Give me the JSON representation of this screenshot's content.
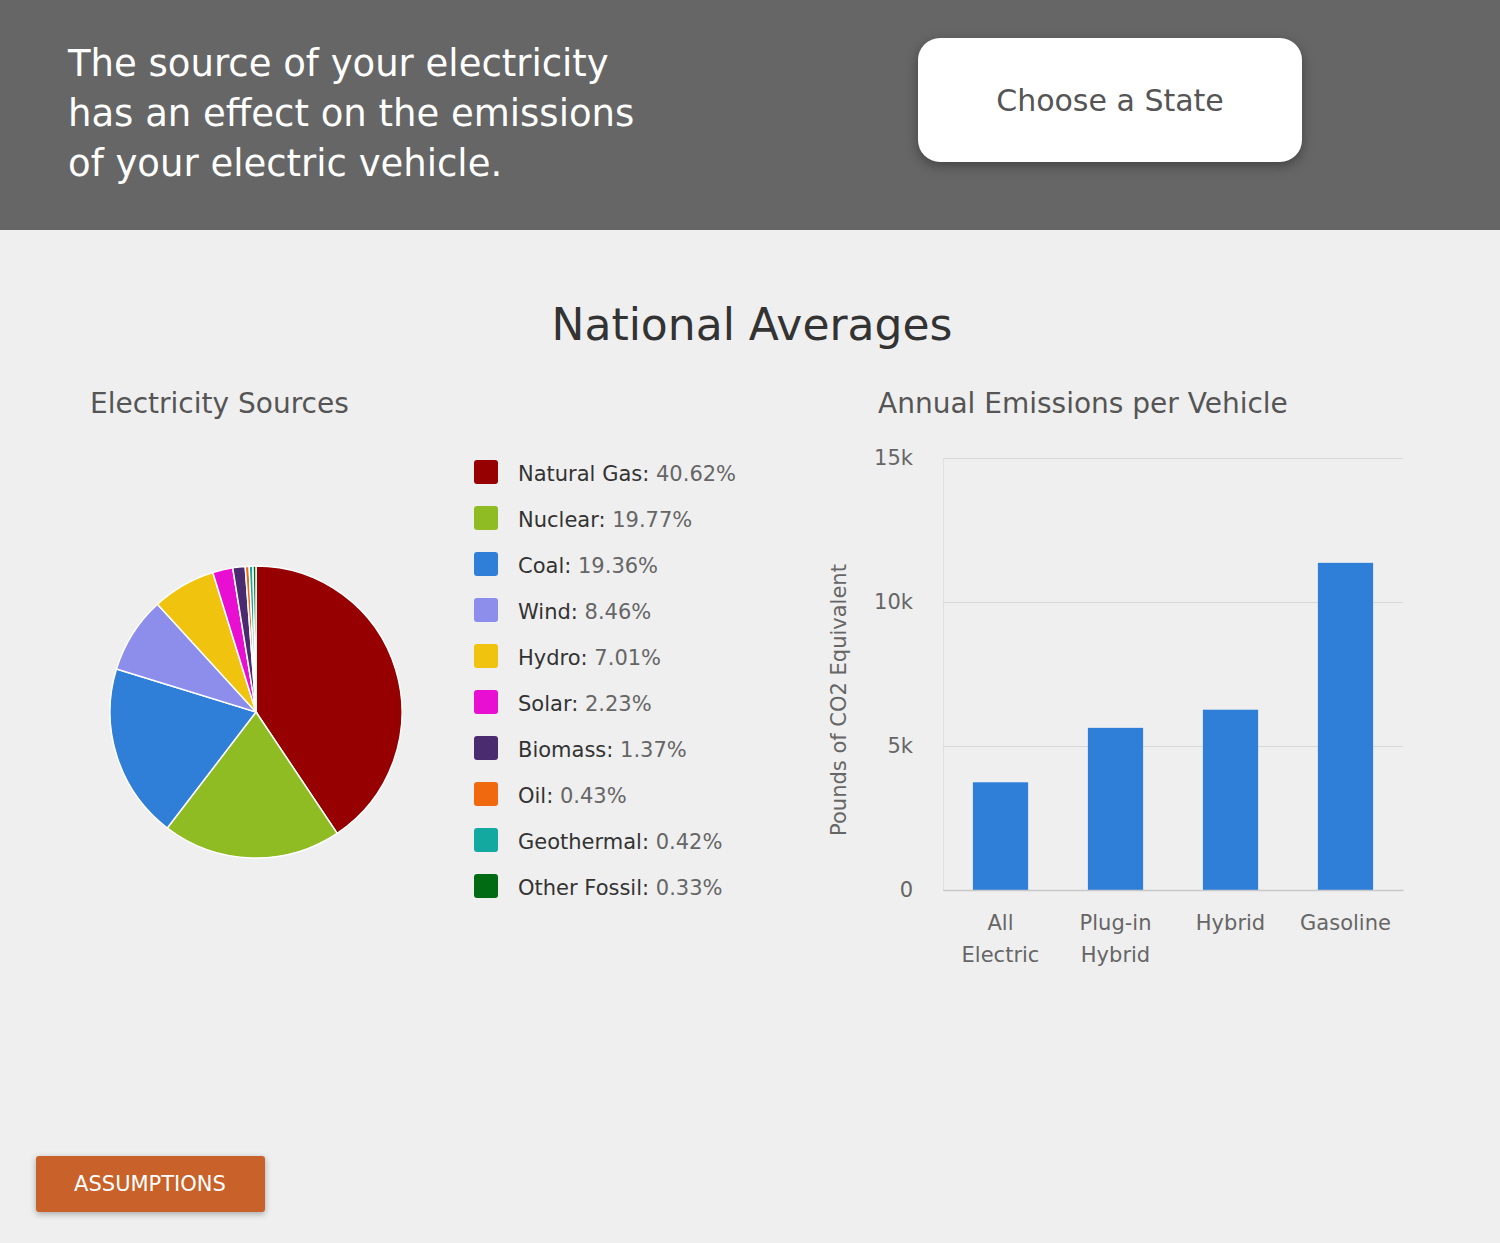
{
  "page": {
    "header_lines": [
      "The source of your electricity",
      "has an effect on the emissions",
      "of your electric vehicle."
    ],
    "state_button": "Choose a State",
    "section_title": "National Averages",
    "assumptions_button": "ASSUMPTIONS"
  },
  "chart_data": [
    {
      "type": "pie",
      "title": "Electricity Sources",
      "categories": [
        "Natural Gas",
        "Nuclear",
        "Coal",
        "Wind",
        "Hydro",
        "Solar",
        "Biomass",
        "Oil",
        "Geothermal",
        "Other Fossil"
      ],
      "values": [
        40.62,
        19.77,
        19.36,
        8.46,
        7.01,
        2.23,
        1.37,
        0.43,
        0.42,
        0.33
      ],
      "value_labels": [
        "40.62%",
        "19.77%",
        "19.36%",
        "8.46%",
        "7.01%",
        "2.23%",
        "1.37%",
        "0.43%",
        "0.42%",
        "0.33%"
      ],
      "legend_separator": ": ",
      "colors": [
        "#960000",
        "#8fbc23",
        "#2f7ed8",
        "#8d8deb",
        "#efc30e",
        "#e80ed2",
        "#4b2b70",
        "#f0690f",
        "#13a8a0",
        "#006b12"
      ],
      "legend": "right"
    },
    {
      "type": "bar",
      "title": "Annual Emissions per Vehicle",
      "ylabel": "Pounds of CO2 Equivalent",
      "categories": [
        "All Electric",
        "Plug-in Hybrid",
        "Hybrid",
        "Gasoline"
      ],
      "values": [
        3740,
        5630,
        6260,
        11360
      ],
      "color": "#2f7ed8",
      "ylim": [
        0,
        15000
      ],
      "yticks": [
        0,
        {
          "value": 5000,
          "label": "5k"
        },
        {
          "value": 10000,
          "label": "10k"
        },
        {
          "value": 15000,
          "label": "15k"
        }
      ],
      "grid": true
    }
  ]
}
